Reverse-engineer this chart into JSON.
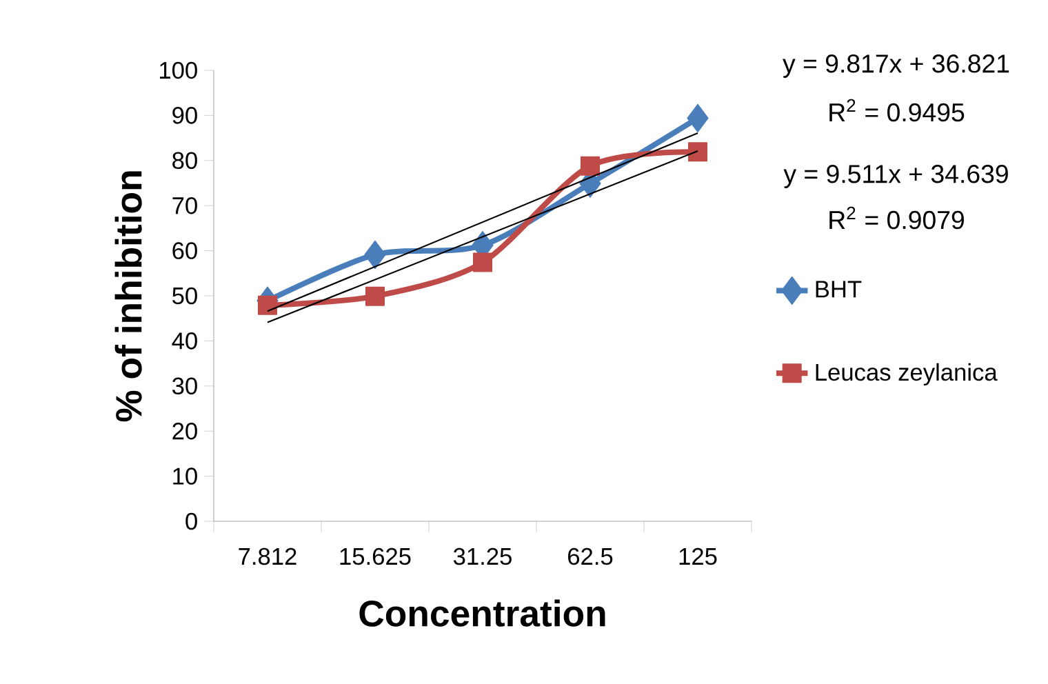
{
  "chart_data": {
    "type": "line",
    "xlabel": "Concentration",
    "ylabel": "% of inhibition",
    "categories": [
      "7.812",
      "15.625",
      "31.25",
      "62.5",
      "125"
    ],
    "ylim": [
      0,
      100
    ],
    "yticks": [
      0,
      10,
      20,
      30,
      40,
      50,
      60,
      70,
      80,
      90,
      100
    ],
    "grid": false,
    "legend": "right",
    "series": [
      {
        "name": "BHT",
        "color": "#4a7ebb",
        "marker": "diamond",
        "values": [
          48.9,
          59.1,
          61.2,
          74.9,
          89.4
        ]
      },
      {
        "name": "Leucas zeylanica",
        "color": "#be4b48",
        "marker": "square",
        "values": [
          47.9,
          49.9,
          57.4,
          78.8,
          81.9
        ]
      },
      {
        "type": "line",
        "color": "#000000",
        "marker": "none",
        "x": [
          "7.812",
          "125"
        ],
        "values": [
          46.6,
          86.1
        ]
      },
      {
        "type": "line",
        "color": "#000000",
        "marker": "none",
        "x": [
          "7.812",
          "125"
        ],
        "values": [
          44.1,
          82.1
        ]
      }
    ],
    "annotations": [
      "y = 9.817x + 36.821",
      "R$^{2}$ = 0.9495",
      "y = 9.511x + 34.639",
      "R$^{2}$ = 0.9079"
    ]
  }
}
